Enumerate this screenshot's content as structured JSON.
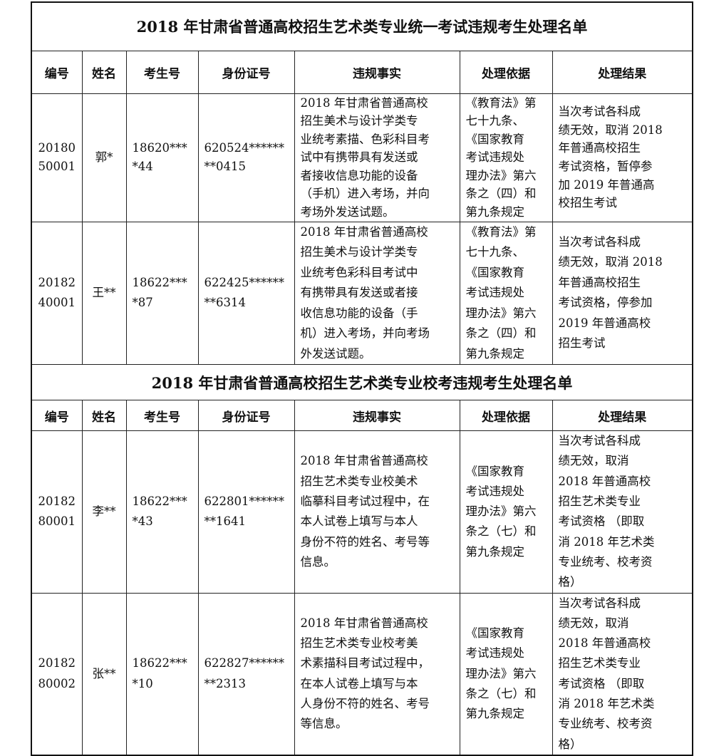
{
  "tables": [
    {
      "title": "2018 年甘肃省普通高校招生艺术类专业统一考试违规考生处理名单",
      "headers": [
        "编号",
        "姓名",
        "考生号",
        "身份证号",
        "违规事实",
        "处理依据",
        "处理结果"
      ],
      "rows": [
        {
          "id": "20180\n50001",
          "name": "郭*",
          "exam_no": "18620***\n*44",
          "id_card": "620524******\n**0415",
          "fact": "2018 年甘肃省普通高校\n招生美术与设计学类专\n业统考素描、色彩科目考\n试中有携带具有发送或\n者接收信息功能的设备\n（手机）进入考场，并向\n考场外发送试题。",
          "basis": "《教育法》第\n七十九条、\n《国家教育\n考试违规处\n理办法》第六\n条之（四）和\n第九条规定",
          "result": "当次考试各科成\n绩无效，取消 2018\n年普通高校招生\n考试资格，暂停参\n加 2019 年普通高\n校招生考试"
        },
        {
          "id": "20182\n40001",
          "name": "王**",
          "exam_no": "18622***\n*87",
          "id_card": "622425******\n**6314",
          "fact": "2018 年甘肃省普通高校\n招生美术与设计学类专\n业统考色彩科目考试中\n有携带具有发送或者接\n收信息功能的设备（手\n机）进入考场，并向考场\n外发送试题。",
          "basis": "《教育法》第\n七十九条、\n《国家教育\n考试违规处\n理办法》第六\n条之（四）和\n第九条规定",
          "result": "当次考试各科成\n绩无效，取消 2018\n年普通高校招生\n考试资格，停参加\n2019 年普通高校\n招生考试"
        }
      ]
    },
    {
      "title": "2018 年甘肃省普通高校招生艺术类专业校考违规考生处理名单",
      "headers": [
        "编号",
        "姓名",
        "考生号",
        "身份证号",
        "违规事实",
        "处理依据",
        "处理结果"
      ],
      "rows": [
        {
          "id": "20182\n80001",
          "name": "李**",
          "exam_no": "18622***\n*43",
          "id_card": "622801******\n**1641",
          "fact": "2018 年甘肃省普通高校\n招生艺术类专业校美术\n临摹科目考试过程中，在\n本人试卷上填写与本人\n身份不符的姓名、考号等\n信息。",
          "basis": "《国家教育\n考试违规处\n理办法》第六\n条之（七）和\n第九条规定",
          "result": "当次考试各科成\n绩无效，取消\n2018 年普通高校\n招生艺术类专业\n考试资格 （即取\n消 2018 年艺术类\n专业统考、校考资\n格）"
        },
        {
          "id": "20182\n80002",
          "name": "张**",
          "exam_no": "18622***\n*10",
          "id_card": "622827******\n**2313",
          "fact": "2018 年甘肃省普通高校\n招生艺术类专业校考美\n术素描科目考试过程中，\n在本人试卷上填写与本\n人身份不符的姓名、考号\n等信息。",
          "basis": "《国家教育\n考试违规处\n理办法》第六\n条之（七）和\n第九条规定",
          "result": "当次考试各科成\n绩无效，取消\n2018 年普通高校\n招生艺术类专业\n考试资格 （即取\n消 2018 年艺术类\n专业统考、校考资\n格）"
        }
      ]
    }
  ]
}
